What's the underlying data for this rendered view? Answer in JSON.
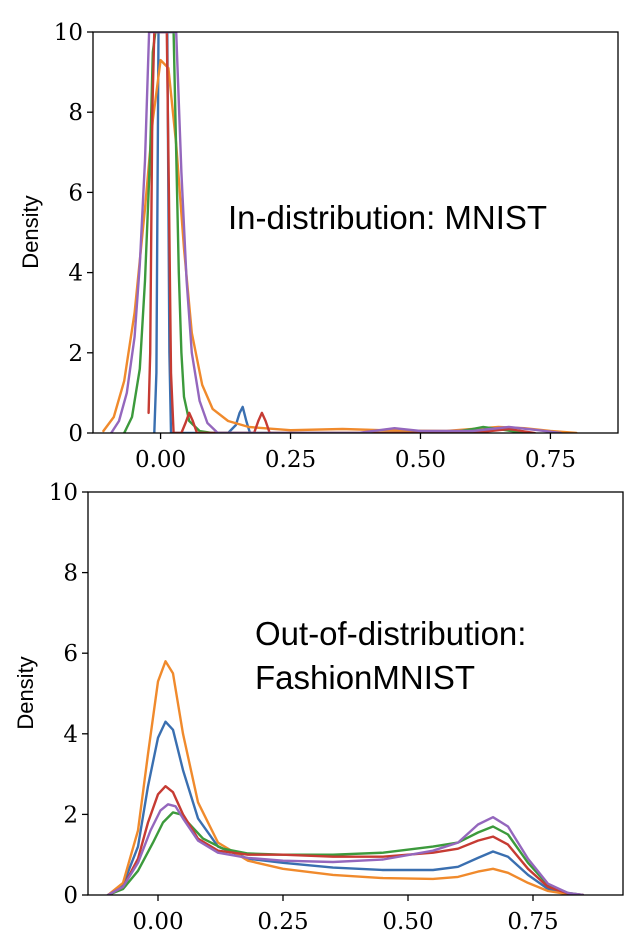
{
  "chart_data": [
    {
      "type": "line",
      "title": "",
      "annotation": [
        "In-distribution: MNIST"
      ],
      "xlabel": "",
      "ylabel": "Density",
      "xlim": [
        -0.13,
        0.88
      ],
      "ylim": [
        0,
        10
      ],
      "x_ticks": [
        0.0,
        0.25,
        0.5,
        0.75
      ],
      "x_tick_labels": [
        "0.00",
        "0.25",
        "0.50",
        "0.75"
      ],
      "y_ticks": [
        0,
        2,
        4,
        6,
        8,
        10
      ],
      "y_tick_labels": [
        "0",
        "2",
        "4",
        "6",
        "8",
        "10"
      ],
      "series": [
        {
          "name": "blue",
          "color": "#3a6fb0",
          "x": [
            -0.012,
            -0.008,
            -0.004,
            0.0,
            0.004,
            0.008,
            0.013,
            0.017,
            0.02,
            0.13,
            0.145,
            0.152,
            0.158,
            0.165,
            0.172
          ],
          "y": [
            0.0,
            1.5,
            10.0,
            10.0,
            10.0,
            10.0,
            10.0,
            2.0,
            0.0,
            0.0,
            0.2,
            0.5,
            0.65,
            0.3,
            0.0
          ]
        },
        {
          "name": "orange",
          "color": "#f08a2c",
          "x": [
            -0.11,
            -0.09,
            -0.07,
            -0.05,
            -0.03,
            -0.015,
            0.0,
            0.015,
            0.03,
            0.045,
            0.06,
            0.08,
            0.1,
            0.13,
            0.17,
            0.25,
            0.35,
            0.45,
            0.55,
            0.65,
            0.7,
            0.75,
            0.8
          ],
          "y": [
            0.05,
            0.4,
            1.3,
            3.0,
            5.6,
            7.8,
            9.3,
            9.1,
            7.2,
            4.6,
            2.5,
            1.2,
            0.6,
            0.3,
            0.15,
            0.07,
            0.1,
            0.06,
            0.05,
            0.15,
            0.12,
            0.05,
            0.0
          ]
        },
        {
          "name": "green",
          "color": "#3c9a3c",
          "x": [
            -0.07,
            -0.055,
            -0.04,
            -0.03,
            -0.02,
            -0.015,
            -0.01,
            0.025,
            0.03,
            0.035,
            0.04,
            0.045,
            0.055,
            0.075,
            0.1,
            0.55,
            0.6,
            0.62,
            0.66,
            0.7
          ],
          "y": [
            0.0,
            0.4,
            1.6,
            3.8,
            7.0,
            9.5,
            10.0,
            10.0,
            7.0,
            4.0,
            2.0,
            0.9,
            0.3,
            0.05,
            0.0,
            0.0,
            0.1,
            0.15,
            0.08,
            0.0
          ]
        },
        {
          "name": "red",
          "color": "#c63b33",
          "x": [
            -0.023,
            -0.02,
            -0.016,
            -0.012,
            0.012,
            0.016,
            0.02,
            0.025,
            0.04,
            0.048,
            0.055,
            0.062,
            0.07,
            0.18,
            0.188,
            0.195,
            0.202,
            0.21,
            0.6,
            0.67,
            0.72
          ],
          "y": [
            0.5,
            2.0,
            8.0,
            10.0,
            10.0,
            6.0,
            1.5,
            0.0,
            0.0,
            0.25,
            0.5,
            0.3,
            0.0,
            0.0,
            0.3,
            0.5,
            0.3,
            0.0,
            0.0,
            0.1,
            0.0
          ]
        },
        {
          "name": "purple",
          "color": "#9467bd",
          "x": [
            -0.095,
            -0.08,
            -0.065,
            -0.05,
            -0.04,
            -0.03,
            -0.022,
            0.03,
            0.04,
            0.05,
            0.06,
            0.075,
            0.09,
            0.11,
            0.38,
            0.45,
            0.5,
            0.6,
            0.67,
            0.72,
            0.77
          ],
          "y": [
            0.0,
            0.3,
            1.0,
            2.4,
            4.2,
            6.8,
            10.0,
            10.0,
            6.5,
            3.8,
            2.0,
            0.8,
            0.25,
            0.0,
            0.0,
            0.12,
            0.05,
            0.05,
            0.15,
            0.08,
            0.0
          ]
        }
      ]
    },
    {
      "type": "line",
      "title": "",
      "annotation": [
        "Out-of-distribution:",
        "FashionMNIST"
      ],
      "xlabel": "",
      "ylabel": "Density",
      "xlim": [
        -0.14,
        0.93
      ],
      "ylim": [
        0,
        10
      ],
      "x_ticks": [
        0.0,
        0.25,
        0.5,
        0.75
      ],
      "x_tick_labels": [
        "0.00",
        "0.25",
        "0.50",
        "0.75"
      ],
      "y_ticks": [
        0,
        2,
        4,
        6,
        8,
        10
      ],
      "y_tick_labels": [
        "0",
        "2",
        "4",
        "6",
        "8",
        "10"
      ],
      "series": [
        {
          "name": "blue",
          "color": "#3a6fb0",
          "x": [
            -0.1,
            -0.07,
            -0.04,
            -0.02,
            0.0,
            0.015,
            0.03,
            0.05,
            0.08,
            0.12,
            0.18,
            0.25,
            0.35,
            0.45,
            0.55,
            0.6,
            0.64,
            0.67,
            0.7,
            0.74,
            0.78,
            0.82,
            0.85
          ],
          "y": [
            0.0,
            0.25,
            1.2,
            2.7,
            3.9,
            4.3,
            4.1,
            3.1,
            1.9,
            1.2,
            0.9,
            0.8,
            0.68,
            0.62,
            0.62,
            0.7,
            0.92,
            1.08,
            0.95,
            0.5,
            0.15,
            0.03,
            0.0
          ]
        },
        {
          "name": "orange",
          "color": "#f08a2c",
          "x": [
            -0.1,
            -0.07,
            -0.04,
            -0.02,
            0.0,
            0.015,
            0.03,
            0.05,
            0.08,
            0.12,
            0.18,
            0.25,
            0.35,
            0.45,
            0.55,
            0.6,
            0.64,
            0.67,
            0.7,
            0.74,
            0.78,
            0.82,
            0.85
          ],
          "y": [
            0.0,
            0.3,
            1.6,
            3.5,
            5.3,
            5.8,
            5.5,
            4.0,
            2.3,
            1.3,
            0.85,
            0.65,
            0.5,
            0.42,
            0.4,
            0.45,
            0.58,
            0.65,
            0.55,
            0.3,
            0.1,
            0.02,
            0.0
          ]
        },
        {
          "name": "green",
          "color": "#3c9a3c",
          "x": [
            -0.1,
            -0.07,
            -0.04,
            -0.01,
            0.01,
            0.03,
            0.045,
            0.06,
            0.09,
            0.13,
            0.18,
            0.25,
            0.35,
            0.45,
            0.55,
            0.6,
            0.64,
            0.67,
            0.7,
            0.74,
            0.78,
            0.82,
            0.85
          ],
          "y": [
            0.0,
            0.15,
            0.6,
            1.3,
            1.8,
            2.05,
            2.0,
            1.8,
            1.4,
            1.15,
            1.03,
            1.0,
            1.0,
            1.05,
            1.2,
            1.3,
            1.55,
            1.7,
            1.5,
            0.8,
            0.25,
            0.05,
            0.0
          ]
        },
        {
          "name": "red",
          "color": "#c63b33",
          "x": [
            -0.1,
            -0.07,
            -0.04,
            -0.02,
            0.0,
            0.015,
            0.03,
            0.05,
            0.08,
            0.12,
            0.18,
            0.25,
            0.35,
            0.45,
            0.55,
            0.6,
            0.64,
            0.67,
            0.7,
            0.74,
            0.78,
            0.82,
            0.85
          ],
          "y": [
            0.0,
            0.2,
            0.9,
            1.8,
            2.5,
            2.7,
            2.55,
            2.0,
            1.4,
            1.1,
            1.0,
            1.0,
            0.95,
            0.95,
            1.05,
            1.15,
            1.35,
            1.45,
            1.25,
            0.65,
            0.2,
            0.04,
            0.0
          ]
        },
        {
          "name": "purple",
          "color": "#9467bd",
          "x": [
            -0.1,
            -0.07,
            -0.04,
            -0.015,
            0.005,
            0.02,
            0.035,
            0.05,
            0.08,
            0.12,
            0.18,
            0.25,
            0.35,
            0.45,
            0.55,
            0.6,
            0.64,
            0.67,
            0.7,
            0.74,
            0.78,
            0.82,
            0.85
          ],
          "y": [
            0.0,
            0.2,
            0.8,
            1.6,
            2.1,
            2.25,
            2.2,
            1.9,
            1.35,
            1.05,
            0.92,
            0.85,
            0.82,
            0.88,
            1.1,
            1.3,
            1.75,
            1.93,
            1.7,
            0.9,
            0.28,
            0.05,
            0.0
          ]
        }
      ]
    }
  ]
}
